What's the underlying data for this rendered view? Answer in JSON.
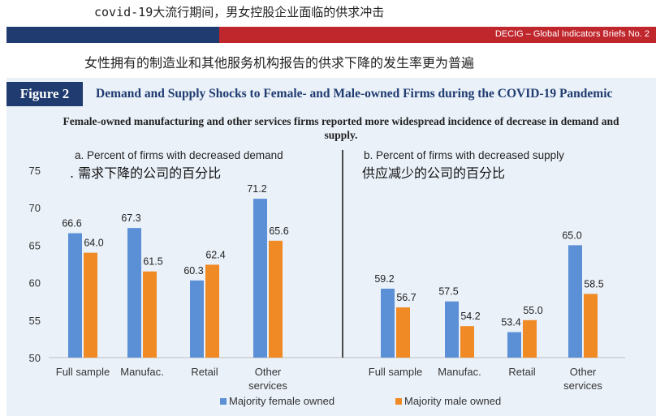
{
  "header": {
    "chinese_title": "covid-19大流行期间，男女控股企业面临的供求冲击",
    "banner_text": "DECIG – Global Indicators Briefs No. 2",
    "chinese_subtitle": "女性拥有的制造业和其他服务机构报告的供求下降的发生率更为普遍"
  },
  "figure": {
    "badge": "Figure 2",
    "title": "Demand and Supply Shocks to Female- and Male-owned Firms during the COVID-19 Pandemic",
    "subtitle": "Female-owned manufacturing and other services firms reported more widespread incidence of decrease in demand and supply."
  },
  "chart_data": [
    {
      "type": "bar",
      "title": "a. Percent of firms with decreased demand",
      "title_cn": ". 需求下降的公司的百分比",
      "categories": [
        "Full sample",
        "Manufac.",
        "Retail",
        "Other services"
      ],
      "series": [
        {
          "name": "Majority female owned",
          "color": "#5b8fd6",
          "values": [
            66.6,
            67.3,
            60.3,
            71.2
          ]
        },
        {
          "name": "Majority male owned",
          "color": "#f08a24",
          "values": [
            64.0,
            61.5,
            62.4,
            65.6
          ]
        }
      ],
      "ylim": [
        50,
        75
      ],
      "yticks": [
        50,
        55,
        60,
        65,
        70,
        75
      ],
      "grid": false
    },
    {
      "type": "bar",
      "title": "b. Percent of firms with decreased supply",
      "title_cn": "供应减少的公司的百分比",
      "categories": [
        "Full sample",
        "Manufac.",
        "Retail",
        "Other services"
      ],
      "series": [
        {
          "name": "Majority female owned",
          "color": "#5b8fd6",
          "values": [
            59.2,
            57.5,
            53.4,
            65.0
          ]
        },
        {
          "name": "Majority male owned",
          "color": "#f08a24",
          "values": [
            56.7,
            54.2,
            55.0,
            58.5
          ]
        }
      ],
      "ylim": [
        50,
        75
      ],
      "grid": false
    }
  ],
  "legend": {
    "placement": "bottom",
    "items": [
      {
        "label": "Majority female owned",
        "color": "#5b8fd6"
      },
      {
        "label": "Majority male owned",
        "color": "#f08a24"
      }
    ]
  }
}
